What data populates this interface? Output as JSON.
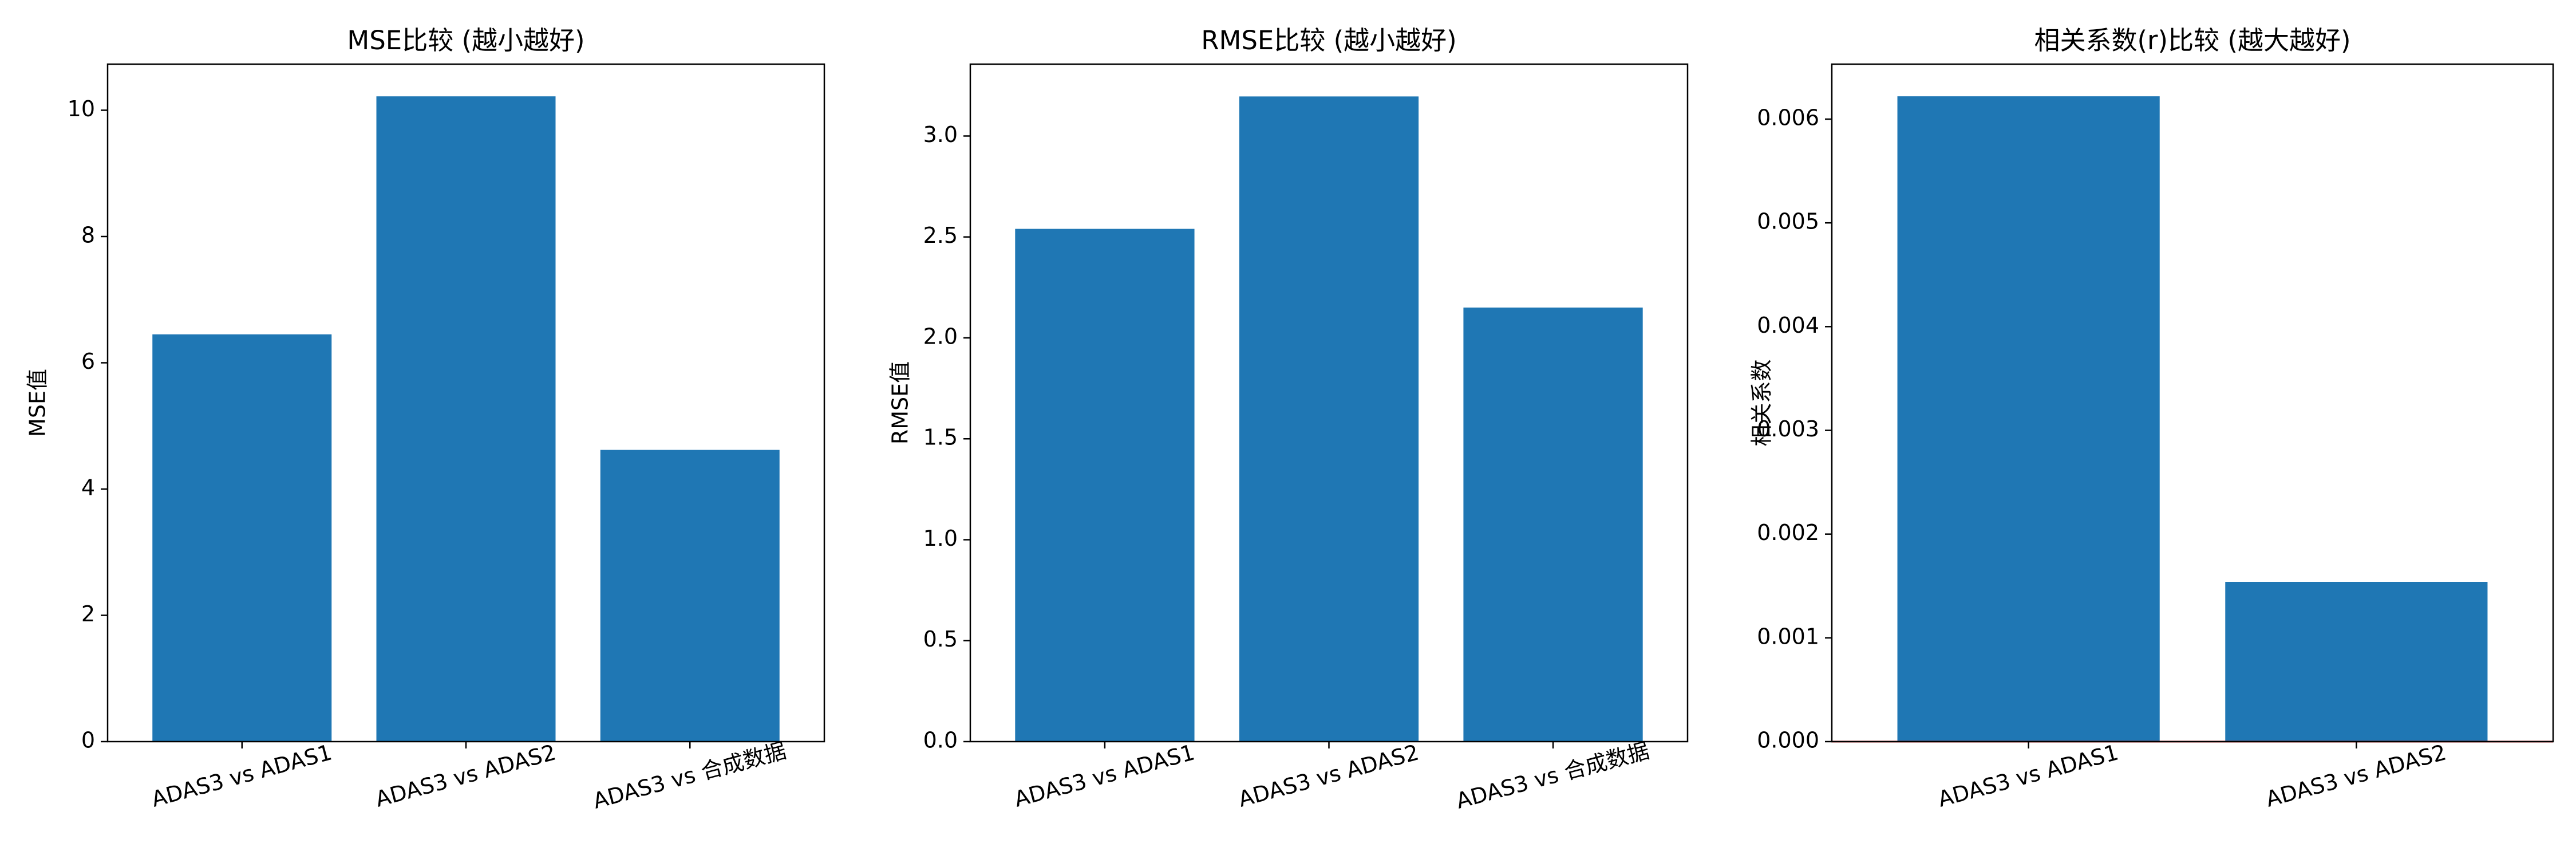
{
  "figure": {
    "background": "#ffffff",
    "bar_color": "#1f77b4",
    "zero_line_color": "#d62728"
  },
  "chart_data": [
    {
      "type": "bar",
      "title": "MSE比较 (越小越好)",
      "xlabel": "",
      "ylabel": "MSE值",
      "categories": [
        "ADAS3 vs ADAS1",
        "ADAS3 vs ADAS2",
        "ADAS3 vs 合成数据"
      ],
      "values": [
        6.45,
        10.22,
        4.62
      ],
      "ylim": [
        0,
        10.73
      ],
      "yticks": [
        0,
        2,
        4,
        6,
        8,
        10
      ],
      "yticklabels": [
        "0",
        "2",
        "4",
        "6",
        "8",
        "10"
      ],
      "grid": false
    },
    {
      "type": "bar",
      "title": "RMSE比较 (越小越好)",
      "xlabel": "",
      "ylabel": "RMSE值",
      "categories": [
        "ADAS3 vs ADAS1",
        "ADAS3 vs ADAS2",
        "ADAS3 vs 合成数据"
      ],
      "values": [
        2.54,
        3.196,
        2.15
      ],
      "ylim": [
        0,
        3.356
      ],
      "yticks": [
        0,
        0.5,
        1.0,
        1.5,
        2.0,
        2.5,
        3.0
      ],
      "yticklabels": [
        "0.0",
        "0.5",
        "1.0",
        "1.5",
        "2.0",
        "2.5",
        "3.0"
      ],
      "grid": false
    },
    {
      "type": "bar",
      "title": "相关系数(r)比较 (越大越好)",
      "xlabel": "",
      "ylabel": "相关系数",
      "categories": [
        "ADAS3 vs ADAS1",
        "ADAS3 vs ADAS2"
      ],
      "values": [
        0.00622,
        0.00154
      ],
      "ylim": [
        0,
        0.00653
      ],
      "yticks": [
        0,
        0.001,
        0.002,
        0.003,
        0.004,
        0.005,
        0.006
      ],
      "yticklabels": [
        "0.000",
        "0.001",
        "0.002",
        "0.003",
        "0.004",
        "0.005",
        "0.006"
      ],
      "zero_line": true,
      "grid": false
    }
  ]
}
